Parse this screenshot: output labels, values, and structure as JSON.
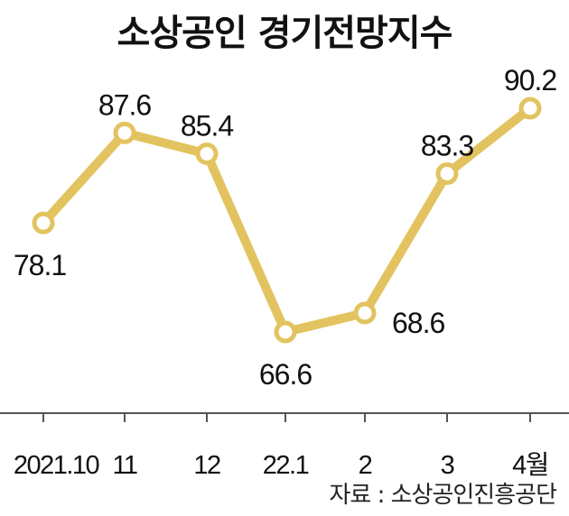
{
  "title": "소상공인 경기전망지수",
  "source": "자료 : 소상공인진흥공단",
  "colors": {
    "line": "#E2C35F",
    "marker_fill": "#ffffff",
    "axis": "#555555",
    "text": "#111111"
  },
  "chart_data": {
    "type": "line",
    "title": "소상공인 경기전망지수",
    "categories": [
      "2021.10",
      "11",
      "12",
      "22.1",
      "2",
      "3",
      "4월"
    ],
    "series": [
      {
        "values": [
          78.1,
          87.6,
          85.4,
          66.6,
          68.6,
          83.3,
          90.2
        ]
      }
    ],
    "data_labels": [
      "78.1",
      "87.6",
      "85.4",
      "66.6",
      "68.6",
      "83.3",
      "90.2"
    ],
    "label_position": [
      "below",
      "above",
      "above",
      "below",
      "right",
      "above",
      "above"
    ],
    "grid": false,
    "legend": "none"
  }
}
